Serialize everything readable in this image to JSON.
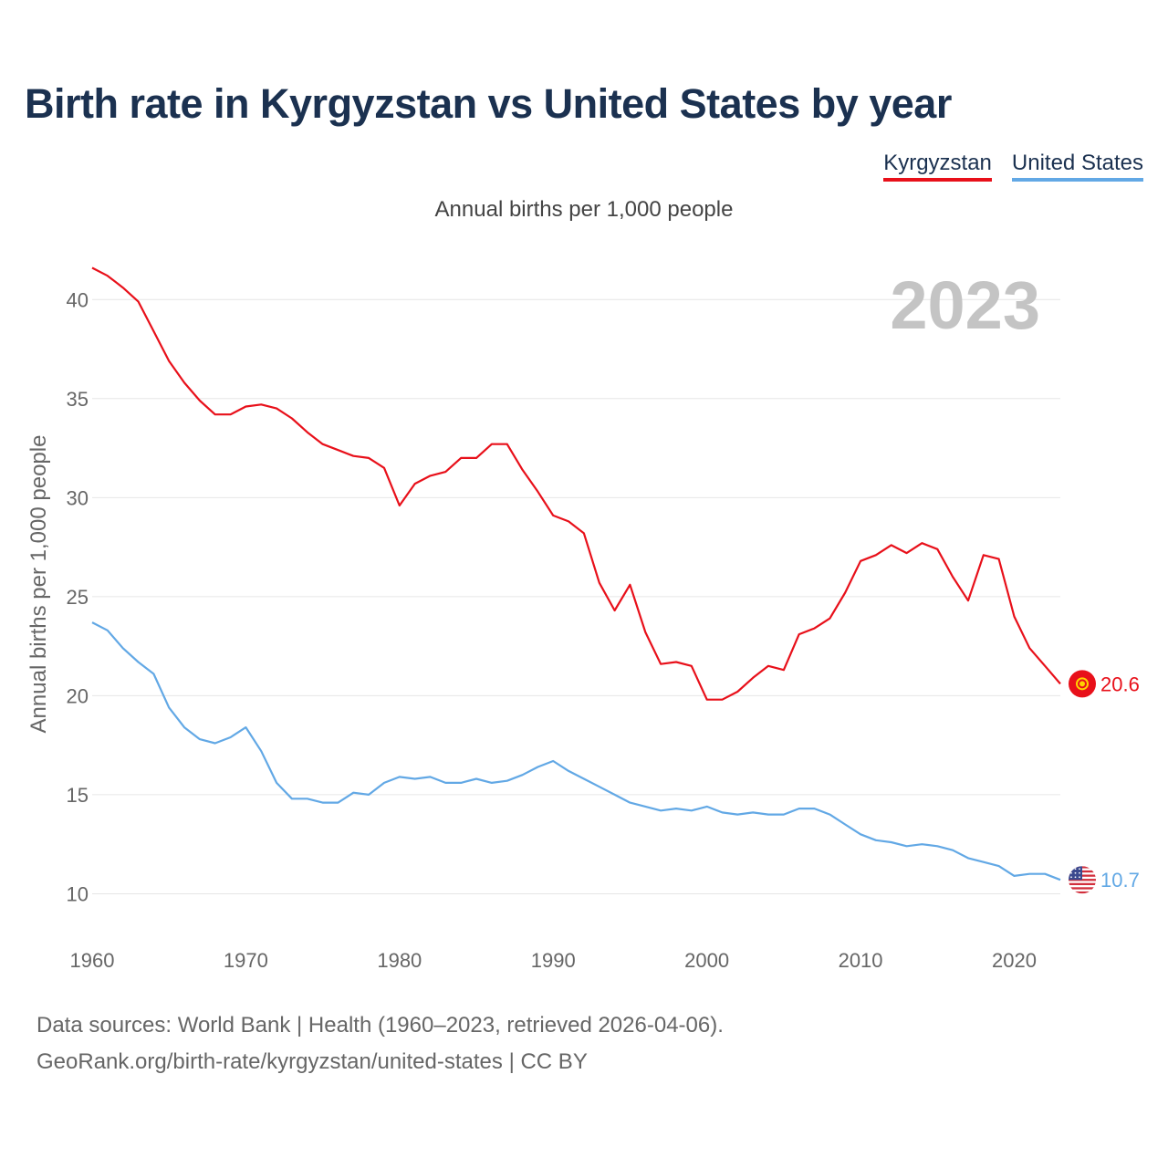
{
  "header": {
    "title": "Birth rate in Kyrgyzstan vs United States by year",
    "subtitle": "Annual births per 1,000 people"
  },
  "legend": [
    {
      "label": "Kyrgyzstan",
      "color": "#e8101a"
    },
    {
      "label": "United States",
      "color": "#62a8e5"
    }
  ],
  "footer": {
    "line1": "Data sources: World Bank | Health (1960–2023, retrieved 2026-04-06).",
    "line2": "GeoRank.org/birth-rate/kyrgyzstan/united-states | CC BY"
  },
  "chart_data": {
    "type": "line",
    "title": "Birth rate in Kyrgyzstan vs United States by year",
    "ylabel": "Annual births per 1,000 people",
    "xlabel": "",
    "year_label": "2023",
    "xlim": [
      1960,
      2023
    ],
    "ylim": [
      8.5,
      42.5
    ],
    "x_ticks": [
      1960,
      1970,
      1980,
      1990,
      2000,
      2010,
      2020
    ],
    "y_ticks": [
      10,
      15,
      20,
      25,
      30,
      35,
      40
    ],
    "grid": true,
    "legend_position": "top-right",
    "x": [
      1960,
      1961,
      1962,
      1963,
      1964,
      1965,
      1966,
      1967,
      1968,
      1969,
      1970,
      1971,
      1972,
      1973,
      1974,
      1975,
      1976,
      1977,
      1978,
      1979,
      1980,
      1981,
      1982,
      1983,
      1984,
      1985,
      1986,
      1987,
      1988,
      1989,
      1990,
      1991,
      1992,
      1993,
      1994,
      1995,
      1996,
      1997,
      1998,
      1999,
      2000,
      2001,
      2002,
      2003,
      2004,
      2005,
      2006,
      2007,
      2008,
      2009,
      2010,
      2011,
      2012,
      2013,
      2014,
      2015,
      2016,
      2017,
      2018,
      2019,
      2020,
      2021,
      2022,
      2023
    ],
    "series": [
      {
        "name": "Kyrgyzstan",
        "color": "#e8101a",
        "end_label": "20.6",
        "values": [
          41.6,
          41.2,
          40.6,
          39.9,
          38.4,
          36.9,
          35.8,
          34.9,
          34.2,
          34.2,
          34.6,
          34.7,
          34.5,
          34.0,
          33.3,
          32.7,
          32.4,
          32.1,
          32.0,
          31.5,
          29.6,
          30.7,
          31.1,
          31.3,
          32.0,
          32.0,
          32.7,
          32.7,
          31.4,
          30.3,
          29.1,
          28.8,
          28.2,
          25.7,
          24.3,
          25.6,
          23.2,
          21.6,
          21.7,
          21.5,
          19.8,
          19.8,
          20.2,
          20.9,
          21.5,
          21.3,
          23.1,
          23.4,
          23.9,
          25.2,
          26.8,
          27.1,
          27.6,
          27.2,
          27.7,
          27.4,
          26.0,
          24.8,
          27.1,
          26.9,
          24.0,
          22.4,
          21.5,
          20.6
        ]
      },
      {
        "name": "United States",
        "color": "#62a8e5",
        "end_label": "10.7",
        "values": [
          23.7,
          23.3,
          22.4,
          21.7,
          21.1,
          19.4,
          18.4,
          17.8,
          17.6,
          17.9,
          18.4,
          17.2,
          15.6,
          14.8,
          14.8,
          14.6,
          14.6,
          15.1,
          15.0,
          15.6,
          15.9,
          15.8,
          15.9,
          15.6,
          15.6,
          15.8,
          15.6,
          15.7,
          16.0,
          16.4,
          16.7,
          16.2,
          15.8,
          15.4,
          15.0,
          14.6,
          14.4,
          14.2,
          14.3,
          14.2,
          14.4,
          14.1,
          14.0,
          14.1,
          14.0,
          14.0,
          14.3,
          14.3,
          14.0,
          13.5,
          13.0,
          12.7,
          12.6,
          12.4,
          12.5,
          12.4,
          12.2,
          11.8,
          11.6,
          11.4,
          10.9,
          11.0,
          11.0,
          10.7
        ]
      }
    ]
  }
}
